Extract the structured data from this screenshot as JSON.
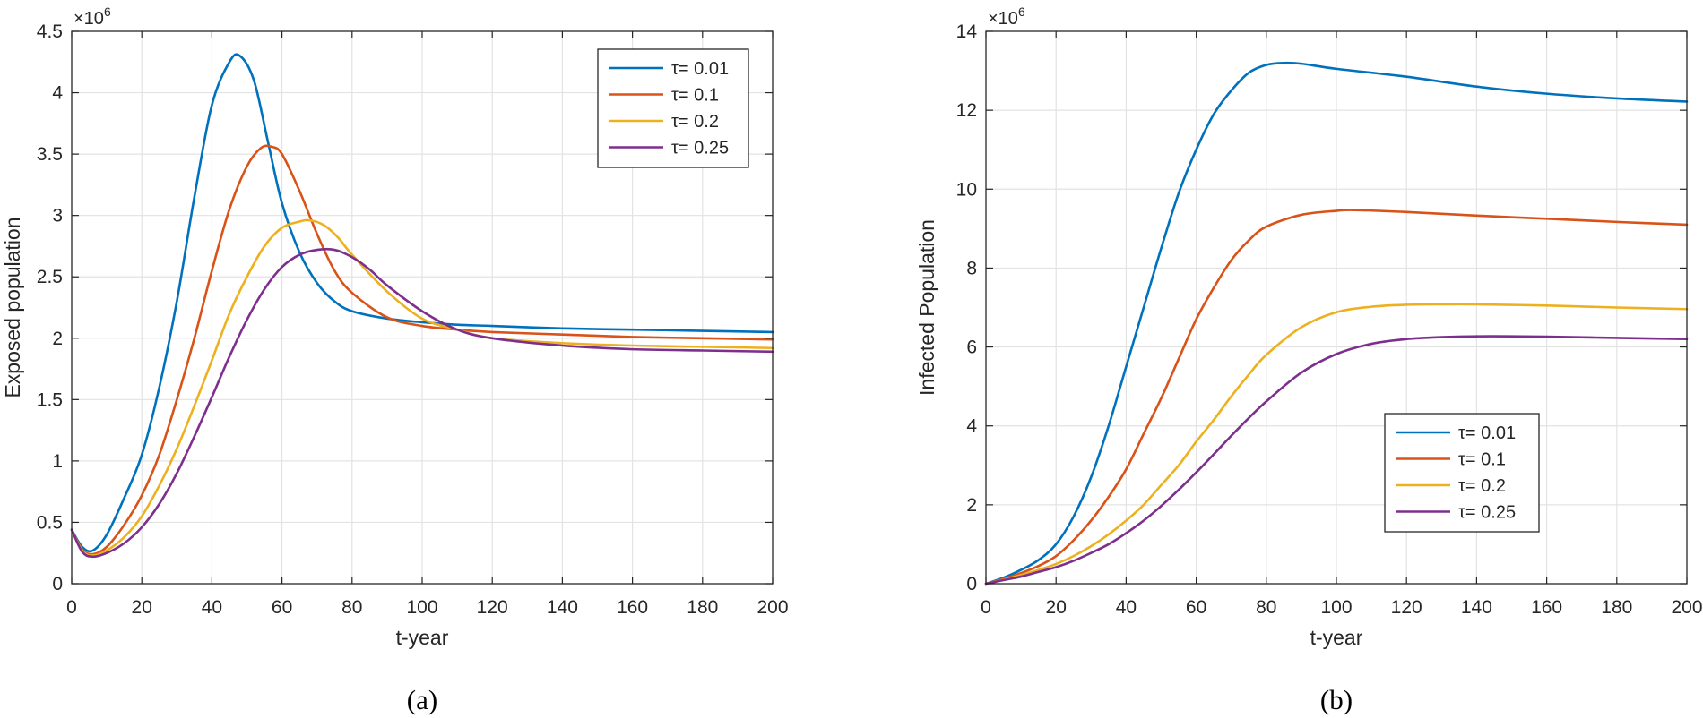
{
  "chart_data": [
    {
      "type": "line",
      "caption": "(a)",
      "xlabel": "t-year",
      "ylabel": "Exposed population",
      "exponent_label": "×10",
      "exponent_power": "6",
      "xlim": [
        0,
        200
      ],
      "ylim": [
        0,
        4.5
      ],
      "xticks": [
        0,
        20,
        40,
        60,
        80,
        100,
        120,
        140,
        160,
        180,
        200
      ],
      "xtick_labels": [
        "0",
        "20",
        "40",
        "60",
        "80",
        "100",
        "120",
        "140",
        "160",
        "180",
        "200"
      ],
      "yticks": [
        0,
        0.5,
        1,
        1.5,
        2,
        2.5,
        3,
        3.5,
        4,
        4.5
      ],
      "ytick_labels": [
        "0",
        "0.5",
        "1",
        "1.5",
        "2",
        "2.5",
        "3",
        "3.5",
        "4",
        "4.5"
      ],
      "grid": true,
      "legend_position": "top-right",
      "series": [
        {
          "name": "τ= 0.01",
          "color": "#0072BD",
          "x": [
            0,
            3,
            6,
            10,
            15,
            20,
            25,
            30,
            35,
            40,
            45,
            48,
            52,
            56,
            60,
            65,
            70,
            75,
            80,
            90,
            100,
            110,
            120,
            140,
            160,
            180,
            200
          ],
          "y": [
            0.44,
            0.3,
            0.27,
            0.4,
            0.7,
            1.05,
            1.6,
            2.3,
            3.15,
            3.9,
            4.25,
            4.3,
            4.1,
            3.6,
            3.1,
            2.7,
            2.45,
            2.3,
            2.22,
            2.16,
            2.13,
            2.11,
            2.1,
            2.08,
            2.07,
            2.06,
            2.05
          ]
        },
        {
          "name": "τ= 0.1",
          "color": "#D95319",
          "x": [
            0,
            3,
            6,
            10,
            15,
            20,
            25,
            30,
            35,
            40,
            45,
            50,
            54,
            57,
            60,
            65,
            70,
            75,
            80,
            90,
            100,
            110,
            120,
            140,
            160,
            180,
            200
          ],
          "y": [
            0.44,
            0.28,
            0.24,
            0.3,
            0.48,
            0.72,
            1.05,
            1.5,
            2.0,
            2.55,
            3.05,
            3.4,
            3.55,
            3.56,
            3.5,
            3.2,
            2.85,
            2.55,
            2.37,
            2.17,
            2.1,
            2.07,
            2.05,
            2.03,
            2.01,
            2.0,
            1.99
          ]
        },
        {
          "name": "τ= 0.2",
          "color": "#EDB120",
          "x": [
            0,
            3,
            6,
            10,
            15,
            20,
            25,
            30,
            35,
            40,
            45,
            50,
            55,
            60,
            65,
            68,
            72,
            76,
            80,
            90,
            100,
            110,
            120,
            140,
            160,
            180,
            200
          ],
          "y": [
            0.44,
            0.27,
            0.23,
            0.27,
            0.38,
            0.55,
            0.8,
            1.1,
            1.45,
            1.82,
            2.2,
            2.5,
            2.75,
            2.9,
            2.95,
            2.96,
            2.92,
            2.82,
            2.68,
            2.38,
            2.16,
            2.07,
            2.0,
            1.96,
            1.94,
            1.93,
            1.92
          ]
        },
        {
          "name": "τ= 0.25",
          "color": "#7E2F8E",
          "x": [
            0,
            3,
            6,
            10,
            15,
            20,
            25,
            30,
            35,
            40,
            45,
            50,
            55,
            60,
            65,
            70,
            75,
            80,
            85,
            90,
            100,
            110,
            120,
            140,
            160,
            180,
            200
          ],
          "y": [
            0.44,
            0.26,
            0.22,
            0.25,
            0.33,
            0.46,
            0.65,
            0.9,
            1.2,
            1.52,
            1.85,
            2.15,
            2.4,
            2.58,
            2.68,
            2.72,
            2.72,
            2.66,
            2.56,
            2.43,
            2.22,
            2.07,
            2.0,
            1.94,
            1.91,
            1.9,
            1.89
          ]
        }
      ]
    },
    {
      "type": "line",
      "caption": "(b)",
      "xlabel": "t-year",
      "ylabel": "Infected Population",
      "exponent_label": "×10",
      "exponent_power": "6",
      "xlim": [
        0,
        200
      ],
      "ylim": [
        0,
        14
      ],
      "xticks": [
        0,
        20,
        40,
        60,
        80,
        100,
        120,
        140,
        160,
        180,
        200
      ],
      "xtick_labels": [
        "0",
        "20",
        "40",
        "60",
        "80",
        "100",
        "120",
        "140",
        "160",
        "180",
        "200"
      ],
      "yticks": [
        0,
        2,
        4,
        6,
        8,
        10,
        12,
        14
      ],
      "ytick_labels": [
        "0",
        "2",
        "4",
        "6",
        "8",
        "10",
        "12",
        "14"
      ],
      "grid": true,
      "legend_position": "lower-center",
      "series": [
        {
          "name": "τ= 0.01",
          "color": "#0072BD",
          "x": [
            0,
            5,
            10,
            15,
            20,
            25,
            30,
            35,
            40,
            45,
            50,
            55,
            60,
            65,
            70,
            75,
            80,
            85,
            90,
            100,
            120,
            140,
            160,
            180,
            200
          ],
          "y": [
            0,
            0.15,
            0.35,
            0.6,
            1.0,
            1.7,
            2.7,
            4.0,
            5.5,
            7.0,
            8.5,
            9.9,
            11.0,
            11.9,
            12.5,
            12.95,
            13.15,
            13.2,
            13.18,
            13.05,
            12.85,
            12.6,
            12.42,
            12.3,
            12.22
          ]
        },
        {
          "name": "τ= 0.1",
          "color": "#D95319",
          "x": [
            0,
            5,
            10,
            15,
            20,
            25,
            30,
            35,
            40,
            45,
            50,
            55,
            60,
            65,
            70,
            75,
            80,
            90,
            100,
            105,
            120,
            140,
            160,
            180,
            200
          ],
          "y": [
            0,
            0.12,
            0.27,
            0.45,
            0.7,
            1.1,
            1.6,
            2.2,
            2.9,
            3.8,
            4.7,
            5.7,
            6.7,
            7.5,
            8.2,
            8.7,
            9.05,
            9.35,
            9.45,
            9.47,
            9.42,
            9.33,
            9.25,
            9.17,
            9.1
          ]
        },
        {
          "name": "τ= 0.2",
          "color": "#EDB120",
          "x": [
            0,
            5,
            10,
            15,
            20,
            25,
            30,
            35,
            40,
            45,
            50,
            55,
            60,
            65,
            70,
            75,
            80,
            90,
            100,
            110,
            120,
            130,
            140,
            160,
            180,
            200
          ],
          "y": [
            0,
            0.1,
            0.22,
            0.35,
            0.5,
            0.7,
            0.95,
            1.25,
            1.6,
            2.0,
            2.5,
            3.0,
            3.6,
            4.15,
            4.75,
            5.3,
            5.8,
            6.5,
            6.88,
            7.02,
            7.07,
            7.08,
            7.08,
            7.05,
            7.0,
            6.96
          ]
        },
        {
          "name": "τ= 0.25",
          "color": "#7E2F8E",
          "x": [
            0,
            5,
            10,
            15,
            20,
            25,
            30,
            35,
            40,
            45,
            50,
            55,
            60,
            65,
            70,
            75,
            80,
            90,
            100,
            110,
            120,
            130,
            140,
            150,
            160,
            180,
            200
          ],
          "y": [
            0,
            0.09,
            0.18,
            0.3,
            0.42,
            0.58,
            0.78,
            1.0,
            1.28,
            1.6,
            1.97,
            2.38,
            2.82,
            3.28,
            3.75,
            4.2,
            4.62,
            5.35,
            5.82,
            6.08,
            6.2,
            6.25,
            6.27,
            6.27,
            6.26,
            6.23,
            6.2
          ]
        }
      ]
    }
  ]
}
